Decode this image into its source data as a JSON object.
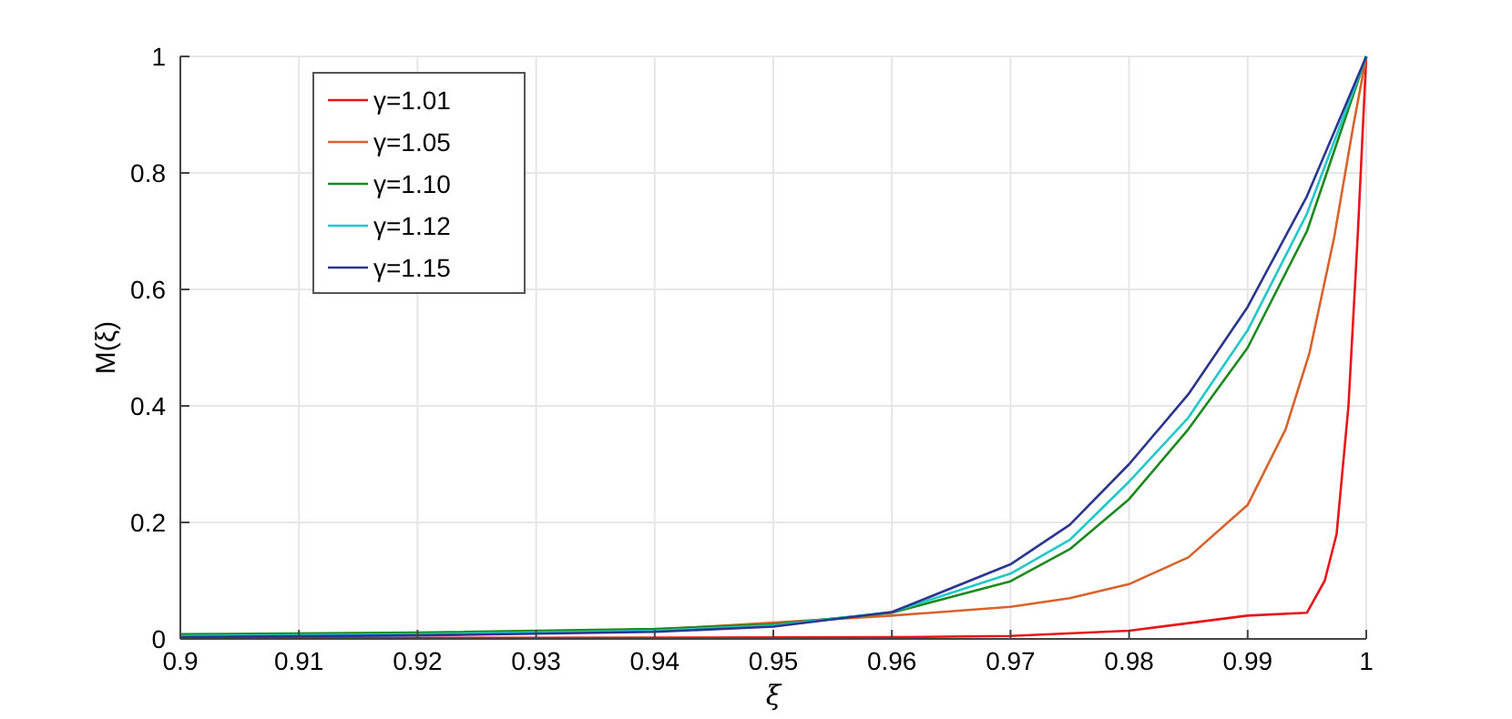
{
  "chart_data": {
    "type": "line",
    "xlabel": "ξ",
    "ylabel": "M(ξ)",
    "xlim": [
      0.9,
      1
    ],
    "ylim": [
      0,
      1
    ],
    "xticks": [
      0.9,
      0.91,
      0.92,
      0.93,
      0.94,
      0.95,
      0.96,
      0.97,
      0.98,
      0.99,
      1
    ],
    "yticks": [
      0,
      0.2,
      0.4,
      0.6,
      0.8,
      1
    ],
    "grid": true,
    "legend": "top left",
    "marker": "none",
    "line_style": "solid",
    "series": [
      {
        "name": "γ=1.01",
        "color": "#e8141a",
        "x": [
          0.9,
          0.93,
          0.96,
          0.97,
          0.98,
          0.99,
          0.995,
          0.9965,
          0.9975,
          0.9985,
          0.9993,
          1
        ],
        "values": [
          0.001,
          0.002,
          0.003,
          0.005,
          0.014,
          0.04,
          0.045,
          0.1,
          0.18,
          0.4,
          0.7,
          1
        ]
      },
      {
        "name": "γ=1.05",
        "color": "#d9622b",
        "x": [
          0.9,
          0.92,
          0.94,
          0.96,
          0.97,
          0.975,
          0.98,
          0.985,
          0.99,
          0.9932,
          0.9952,
          0.9973,
          0.9989,
          1
        ],
        "values": [
          0.006,
          0.009,
          0.016,
          0.04,
          0.055,
          0.07,
          0.094,
          0.14,
          0.23,
          0.36,
          0.49,
          0.69,
          0.88,
          1
        ]
      },
      {
        "name": "γ=1.10",
        "color": "#1a8a1a",
        "x": [
          0.9,
          0.92,
          0.94,
          0.95,
          0.96,
          0.97,
          0.975,
          0.98,
          0.985,
          0.99,
          0.995,
          1
        ],
        "values": [
          0.008,
          0.011,
          0.017,
          0.025,
          0.045,
          0.099,
          0.154,
          0.24,
          0.36,
          0.5,
          0.7,
          1
        ]
      },
      {
        "name": "γ=1.12",
        "color": "#20c8c8",
        "x": [
          0.9,
          0.92,
          0.94,
          0.95,
          0.96,
          0.97,
          0.975,
          0.98,
          0.985,
          0.99,
          0.995,
          1
        ],
        "values": [
          0.005,
          0.008,
          0.014,
          0.023,
          0.046,
          0.112,
          0.17,
          0.27,
          0.38,
          0.53,
          0.73,
          1
        ]
      },
      {
        "name": "γ=1.15",
        "color": "#2a3590",
        "x": [
          0.9,
          0.92,
          0.94,
          0.95,
          0.96,
          0.97,
          0.975,
          0.98,
          0.985,
          0.99,
          0.995,
          1
        ],
        "values": [
          0.003,
          0.006,
          0.012,
          0.021,
          0.046,
          0.128,
          0.196,
          0.3,
          0.42,
          0.57,
          0.76,
          1
        ]
      }
    ]
  }
}
